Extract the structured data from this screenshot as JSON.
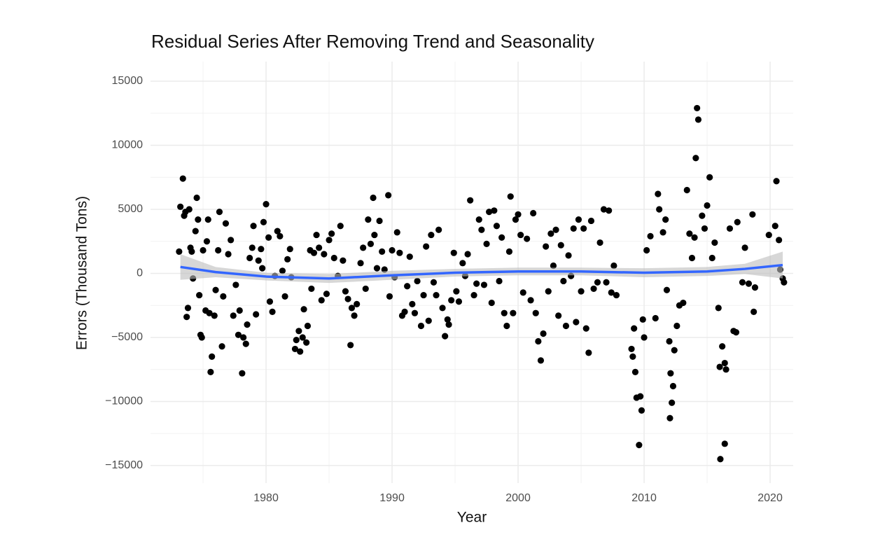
{
  "chart_data": {
    "type": "scatter",
    "title": "Residual Series After Removing Trend and Seasonality",
    "xlabel": "Year",
    "ylabel": "Errors (Thousand Tons)",
    "xlim": [
      1970.83,
      2021.83
    ],
    "ylim": [
      -16370,
      16530
    ],
    "xticks": [
      1980,
      1990,
      2000,
      2010,
      2020
    ],
    "yticks": [
      {
        "value": -15000,
        "label": "−15000"
      },
      {
        "value": -10000,
        "label": "−10000"
      },
      {
        "value": -5000,
        "label": "−5000"
      },
      0,
      5000,
      10000,
      15000
    ],
    "grid": true,
    "color": "#000000",
    "x": [
      1973.1,
      1973.2,
      1973.4,
      1973.5,
      1973.6,
      1973.8,
      1973.7,
      1973.9,
      1974.0,
      1974.1,
      1974.2,
      1974.4,
      1974.5,
      1974.6,
      1974.7,
      1974.8,
      1974.9,
      1975.0,
      1975.2,
      1975.3,
      1975.4,
      1975.5,
      1975.7,
      1975.6,
      1975.9,
      1976.0,
      1976.2,
      1976.3,
      1976.5,
      1976.6,
      1976.8,
      1977.0,
      1977.2,
      1977.4,
      1977.6,
      1977.8,
      1977.9,
      1978.1,
      1978.2,
      1978.4,
      1978.5,
      1978.7,
      1978.9,
      1979.0,
      1979.2,
      1979.4,
      1979.6,
      1979.7,
      1979.8,
      1980.0,
      1980.2,
      1980.3,
      1980.5,
      1980.7,
      1980.9,
      1981.1,
      1981.3,
      1981.5,
      1981.7,
      1981.9,
      1982.0,
      1982.3,
      1982.4,
      1982.6,
      1982.7,
      1982.9,
      1983.0,
      1983.2,
      1983.3,
      1983.5,
      1983.6,
      1983.8,
      1984.0,
      1984.2,
      1984.4,
      1984.6,
      1984.8,
      1985.0,
      1985.2,
      1985.4,
      1985.7,
      1985.9,
      1986.1,
      1986.3,
      1986.5,
      1986.7,
      1986.8,
      1987.0,
      1987.2,
      1987.5,
      1987.7,
      1987.9,
      1988.1,
      1988.3,
      1988.5,
      1988.6,
      1988.8,
      1989.0,
      1989.2,
      1989.4,
      1989.7,
      1989.8,
      1990.0,
      1990.2,
      1990.4,
      1990.6,
      1990.8,
      1991.0,
      1991.2,
      1991.4,
      1991.6,
      1991.8,
      1992.0,
      1992.3,
      1992.5,
      1992.7,
      1992.9,
      1993.1,
      1993.3,
      1993.5,
      1993.7,
      1994.0,
      1994.2,
      1994.4,
      1994.5,
      1994.7,
      1994.9,
      1995.1,
      1995.3,
      1995.6,
      1995.8,
      1996.0,
      1996.2,
      1996.5,
      1996.7,
      1996.9,
      1997.1,
      1997.3,
      1997.5,
      1997.7,
      1997.9,
      1998.1,
      1998.3,
      1998.5,
      1998.7,
      1998.9,
      1999.1,
      1999.3,
      1999.4,
      1999.6,
      1999.8,
      2000.0,
      2000.2,
      2000.4,
      2000.7,
      2001.0,
      2001.2,
      2001.4,
      2001.6,
      2001.8,
      2002.0,
      2002.2,
      2002.4,
      2002.6,
      2002.8,
      2003.0,
      2003.2,
      2003.4,
      2003.6,
      2003.8,
      2004.0,
      2004.2,
      2004.4,
      2004.6,
      2004.8,
      2005.0,
      2005.2,
      2005.4,
      2005.6,
      2005.8,
      2006.0,
      2006.3,
      2006.5,
      2006.8,
      2007.0,
      2007.2,
      2007.4,
      2007.6,
      2007.8,
      2009.0,
      2009.1,
      2009.2,
      2009.3,
      2009.4,
      2009.6,
      2009.7,
      2009.8,
      2009.9,
      2010.0,
      2010.2,
      2010.5,
      2010.9,
      2011.1,
      2011.2,
      2011.5,
      2011.7,
      2011.8,
      2012.0,
      2012.1,
      2012.05,
      2012.2,
      2012.3,
      2012.4,
      2012.6,
      2012.8,
      2013.1,
      2013.4,
      2013.6,
      2013.8,
      2014.0,
      2014.1,
      2014.2,
      2014.3,
      2014.6,
      2014.8,
      2015.0,
      2015.2,
      2015.4,
      2015.6,
      2015.9,
      2016.0,
      2016.2,
      2016.05,
      2016.4,
      2016.5,
      2016.4,
      2016.8,
      2017.1,
      2017.3,
      2017.4,
      2017.8,
      2018.0,
      2018.3,
      2018.6,
      2018.7,
      2018.8,
      2019.9,
      2020.5,
      2020.4,
      2020.7,
      2020.8,
      2021.0,
      2021.1
    ],
    "values": [
      1700,
      5200,
      7400,
      4500,
      4800,
      -2700,
      -3400,
      5000,
      2000,
      1700,
      -400,
      3300,
      5900,
      4200,
      -1700,
      -4800,
      -5000,
      1800,
      -2900,
      2500,
      4200,
      -3100,
      -6500,
      -7700,
      -3300,
      -1300,
      1800,
      4800,
      -5700,
      -1800,
      3900,
      1500,
      2600,
      -3300,
      -900,
      -4800,
      -2900,
      -7800,
      -5000,
      -5500,
      -4000,
      1200,
      2000,
      3700,
      -3200,
      1000,
      1900,
      400,
      4000,
      5400,
      2800,
      -2200,
      -3000,
      -200,
      3300,
      2900,
      200,
      -1800,
      1100,
      1900,
      -300,
      -5900,
      -5200,
      -4500,
      -6100,
      -5000,
      -2800,
      -5400,
      -4100,
      1800,
      -1200,
      1600,
      3000,
      2000,
      -2100,
      1500,
      -1600,
      2600,
      3100,
      1200,
      -200,
      3700,
      1000,
      -1400,
      -2000,
      -5600,
      -2700,
      -3300,
      -2400,
      800,
      2000,
      -1200,
      4200,
      2300,
      5900,
      3000,
      400,
      4100,
      1700,
      300,
      6100,
      -1800,
      1800,
      -300,
      3200,
      1600,
      -3300,
      -3000,
      -1000,
      1300,
      -2400,
      -3100,
      -600,
      -4100,
      -1700,
      2100,
      -3700,
      3000,
      -700,
      -1700,
      3400,
      -2700,
      -4900,
      -3600,
      -4000,
      -2100,
      1600,
      -1400,
      -2200,
      800,
      -200,
      1500,
      5700,
      -1700,
      -800,
      4200,
      3400,
      -900,
      2300,
      4800,
      -2300,
      4900,
      3700,
      -600,
      2800,
      -3100,
      -4100,
      1700,
      6000,
      -3100,
      4200,
      4600,
      3000,
      -1500,
      2700,
      -2100,
      4700,
      -3100,
      -5300,
      -6800,
      -4700,
      2100,
      -1400,
      3100,
      600,
      3400,
      -3300,
      2200,
      -600,
      -4100,
      1400,
      -200,
      3500,
      -3800,
      4200,
      -1400,
      3500,
      -4300,
      -6200,
      4100,
      -1200,
      -700,
      2400,
      5000,
      -700,
      4900,
      -1500,
      600,
      -1700,
      -5900,
      -6500,
      -4300,
      -7700,
      -9700,
      -13400,
      -9600,
      -10700,
      -3600,
      -5000,
      1800,
      2900,
      -3500,
      6200,
      5000,
      3200,
      4200,
      -1300,
      -5300,
      -7800,
      -11300,
      -10100,
      -8800,
      -6000,
      -4100,
      -2500,
      -2300,
      6500,
      3100,
      1200,
      2800,
      9000,
      12900,
      12000,
      4500,
      3500,
      5300,
      7500,
      1200,
      2400,
      -2700,
      -7300,
      -5700,
      -14500,
      -13300,
      -7500,
      -7000,
      3500,
      -4500,
      -4600,
      4000,
      -700,
      2000,
      -800,
      4600,
      -3000,
      -1100,
      3000,
      7200,
      3700,
      2600,
      300,
      -400,
      -700
    ],
    "smooth": {
      "color": "#3366ff",
      "band_color": "#bdbdbd",
      "x": [
        1973.2,
        1976,
        1980,
        1985,
        1990,
        1995,
        2000,
        2005,
        2010,
        2015,
        2018,
        2021
      ],
      "values": [
        500,
        100,
        -250,
        -400,
        -150,
        50,
        150,
        150,
        50,
        150,
        350,
        650
      ],
      "lower": [
        -500,
        -300,
        -550,
        -750,
        -500,
        -250,
        -150,
        -150,
        -300,
        -200,
        -50,
        -400
      ],
      "upper": [
        1500,
        500,
        50,
        -50,
        200,
        350,
        450,
        450,
        400,
        500,
        750,
        1700
      ]
    }
  }
}
